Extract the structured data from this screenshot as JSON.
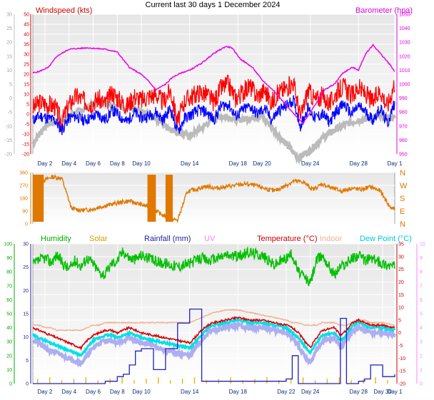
{
  "title": "Current last 30 days 1 December 2024",
  "colors": {
    "wind": "#ff0000",
    "gust": "#0000ff",
    "direction": "#e07800",
    "barometer": "#ee00ee",
    "baro_shadow": "#b4b4b4",
    "humidity": "#00c000",
    "solar": "#f0b000",
    "rainfall": "#2020c0",
    "uv": "#ff80ff",
    "temperature": "#dd0000",
    "indoor": "#f0b090",
    "dewpoint": "#00e0e8",
    "feels": "#a0a0f0",
    "axis_left": "#4040a0",
    "plot_bg": "#f2f2f2"
  },
  "chart_data": [
    {
      "type": "line",
      "name": "wind-panel",
      "left_label": "Windspeed (kts)",
      "right_label": "Barometer (hpa)",
      "left_axis": {
        "min": -20,
        "max": 50,
        "ticks": [
          -20,
          -15,
          -10,
          -5,
          0,
          5,
          10,
          15,
          20,
          25,
          30,
          35,
          40,
          45,
          50
        ]
      },
      "left_axis_outer": {
        "min": -20,
        "max": 30,
        "ticks": [
          -20,
          -15,
          -10,
          -5,
          0,
          5,
          10,
          15,
          20,
          25,
          30
        ]
      },
      "right_axis": {
        "min": 950,
        "max": 1050,
        "ticks": [
          950,
          960,
          970,
          980,
          990,
          1000,
          1010,
          1020,
          1030,
          1040,
          1050
        ]
      },
      "x_ticks": [
        "Day 2",
        "Day 4",
        "Day 6",
        "Day 8",
        "Day 10",
        "Day 14",
        "Day 18",
        "Day 20",
        "Day 24",
        "Day 28",
        "Day 1"
      ],
      "x_tick_days": [
        2,
        4,
        6,
        8,
        10,
        14,
        18,
        20,
        24,
        28,
        31
      ],
      "barometer_days": [
        1.0,
        1.5,
        2.3,
        3.0,
        4.0,
        5.5,
        7.0,
        8.0,
        9.0,
        10.0,
        10.6,
        11.2,
        12.0,
        12.6,
        13.3,
        14.0,
        15.0,
        16.0,
        17.0,
        17.5,
        18.2,
        19.2,
        20.0,
        21.0,
        22.0,
        22.7,
        23.4,
        24.0,
        24.6,
        25.2,
        26.0,
        26.7,
        27.5,
        28.0,
        28.6,
        29.2,
        30.0,
        30.6,
        31.0
      ],
      "barometer_values": [
        1008,
        1009,
        1012,
        1020,
        1025,
        1026,
        1025,
        1023,
        1012,
        1007,
        1002,
        996,
        1000,
        1005,
        1008,
        1010,
        1015,
        1022,
        1027,
        1026,
        1018,
        1012,
        1003,
        995,
        985,
        978,
        972,
        980,
        988,
        996,
        1000,
        1008,
        1012,
        1010,
        1022,
        1028,
        1020,
        1014,
        1009
      ],
      "windspeed_days": [
        1.0,
        1.6,
        2.2,
        2.8,
        3.4,
        4.0,
        4.6,
        5.2,
        5.8,
        6.4,
        7.0,
        7.6,
        8.2,
        8.8,
        9.4,
        10.0,
        10.6,
        11.2,
        11.8,
        12.4,
        13.0,
        13.6,
        14.2,
        14.8,
        15.4,
        16.0,
        16.6,
        17.2,
        17.8,
        18.4,
        19.0,
        19.6,
        20.2,
        20.8,
        21.4,
        22.0,
        22.6,
        23.2,
        23.8,
        24.4,
        25.0,
        25.6,
        26.2,
        26.8,
        27.4,
        28.0,
        28.6,
        29.2,
        29.8,
        30.4,
        31.0
      ],
      "windspeed_values": [
        3,
        6,
        5,
        4,
        -4,
        5,
        9,
        7,
        5,
        8,
        5,
        11,
        7,
        4,
        9,
        7,
        9,
        10,
        6,
        12,
        -4,
        7,
        9,
        11,
        10,
        6,
        13,
        15,
        8,
        11,
        14,
        9,
        12,
        6,
        11,
        13,
        16,
        -2,
        12,
        7,
        9,
        5,
        11,
        14,
        9,
        13,
        10,
        6,
        12,
        4,
        16
      ],
      "gust_values": [
        -3,
        -1,
        -2,
        -3,
        -8,
        -2,
        -1,
        -3,
        -2,
        0,
        -3,
        2,
        -1,
        -4,
        1,
        -2,
        -1,
        1,
        -3,
        3,
        -9,
        -2,
        0,
        2,
        1,
        -3,
        4,
        5,
        -1,
        2,
        4,
        0,
        3,
        -3,
        2,
        4,
        7,
        -6,
        3,
        -2,
        0,
        -4,
        2,
        5,
        0,
        4,
        1,
        -3,
        3,
        -5,
        6
      ],
      "grey_days": [
        1.0,
        2.0,
        3.0,
        4.0,
        5.0,
        6.0,
        7.0,
        8.0,
        9.0,
        10.0,
        11.0,
        12.0,
        13.0,
        14.0,
        15.0,
        16.0,
        17.0,
        18.0,
        19.0,
        20.0,
        21.0,
        22.0,
        23.0,
        24.0,
        25.0,
        26.0,
        27.0,
        28.0,
        29.0,
        30.0,
        31.0
      ],
      "grey_values": [
        -15,
        -6,
        -3,
        -1,
        2,
        5,
        6,
        4,
        3,
        1,
        -1,
        -6,
        -9,
        -11,
        -7,
        -2,
        -1,
        -3,
        -2,
        -1,
        -8,
        -15,
        -22,
        -18,
        -12,
        -8,
        -5,
        -3,
        -2,
        -1,
        -2
      ]
    },
    {
      "type": "line",
      "name": "direction-panel",
      "left_axis": {
        "min": 0,
        "max": 360,
        "ticks": [
          0,
          90,
          180,
          270,
          360
        ]
      },
      "right_labels": [
        "N",
        "W",
        "S",
        "E",
        "N"
      ],
      "direction_days": [
        1.0,
        1.8,
        2.6,
        3.4,
        4.2,
        5.0,
        5.8,
        6.6,
        7.4,
        8.2,
        9.0,
        9.8,
        10.6,
        11.4,
        12.2,
        13.0,
        13.8,
        14.6,
        15.4,
        16.2,
        17.0,
        17.8,
        18.6,
        19.4,
        20.2,
        21.0,
        21.8,
        22.6,
        23.4,
        24.2,
        25.0,
        25.8,
        26.6,
        27.4,
        28.2,
        29.0,
        29.8,
        30.6,
        31.0
      ],
      "direction_values": [
        250,
        300,
        330,
        320,
        110,
        95,
        100,
        120,
        135,
        150,
        160,
        140,
        120,
        80,
        40,
        25,
        225,
        245,
        265,
        250,
        260,
        270,
        280,
        270,
        250,
        230,
        260,
        300,
        295,
        240,
        280,
        250,
        230,
        250,
        240,
        260,
        230,
        120,
        100
      ]
    },
    {
      "type": "line",
      "name": "temperature-panel",
      "series_labels": [
        "Humidity",
        "Solar",
        "Rainfall (mm)",
        "UV",
        "Temperature (°C)",
        "Indoor",
        "Dew Point (°C)"
      ],
      "humidity_axis": {
        "min": 0,
        "max": 100,
        "ticks": [
          0,
          10,
          20,
          30,
          40,
          50,
          60,
          70,
          80,
          90,
          100
        ]
      },
      "rain_axis": {
        "min": 0,
        "max": 30,
        "ticks": [
          0,
          5,
          10,
          15,
          20,
          25,
          30
        ]
      },
      "temp_axis": {
        "min": -20,
        "max": 35,
        "ticks": [
          -20,
          -15,
          -10,
          -5,
          0,
          5,
          10,
          15,
          20,
          25,
          30,
          35
        ]
      },
      "uv_axis": {
        "min": 0,
        "max": 10,
        "ticks": [
          0,
          1,
          2,
          3,
          4,
          5,
          6,
          7,
          8,
          9,
          10
        ]
      },
      "x_ticks": [
        "Day 2",
        "Day 4",
        "Day 6",
        "Day 8",
        "Day 10",
        "Day 14",
        "Day 18",
        "Day 22",
        "Day 24",
        "Day 28",
        "Day 30",
        "Day 1"
      ],
      "x_tick_days": [
        2,
        4,
        6,
        8,
        10,
        14,
        18,
        22,
        24,
        28,
        30,
        31
      ],
      "days": [
        1.0,
        1.5,
        2.0,
        2.5,
        3.0,
        3.5,
        4.0,
        4.5,
        5.0,
        5.5,
        6.0,
        6.5,
        7.0,
        7.5,
        8.0,
        8.5,
        9.0,
        9.5,
        10.0,
        11.0,
        12.0,
        13.0,
        14.0,
        15.0,
        15.5,
        16.0,
        17.0,
        18.0,
        19.0,
        20.0,
        21.0,
        22.0,
        22.5,
        23.0,
        23.5,
        24.0,
        24.5,
        25.0,
        26.0,
        26.5,
        27.0,
        27.5,
        28.0,
        28.5,
        29.0,
        30.0,
        31.0
      ],
      "temperature": [
        2,
        1,
        0,
        -1,
        -2,
        -3,
        -4,
        -5,
        -6,
        -3,
        -1,
        0,
        1,
        1,
        0,
        1,
        2,
        1,
        0,
        -1,
        -2,
        -3,
        -4,
        1,
        3,
        4,
        5,
        6,
        5,
        5,
        4,
        3,
        2,
        0,
        -3,
        -6,
        -2,
        1,
        2,
        -1,
        1,
        4,
        5,
        4,
        3,
        3,
        2
      ],
      "indoor": [
        3,
        3,
        2,
        2,
        1,
        1,
        1,
        1,
        1,
        2,
        3,
        3,
        4,
        4,
        4,
        4,
        4,
        4,
        4,
        4,
        4,
        4,
        4,
        6,
        7,
        8,
        9,
        9,
        8,
        7,
        6,
        5,
        4,
        4,
        3,
        3,
        3,
        4,
        4,
        3,
        3,
        4,
        5,
        5,
        4,
        4,
        3
      ],
      "dewpoint": [
        -1,
        -2,
        -3,
        -4,
        -5,
        -6,
        -7,
        -8,
        -9,
        -6,
        -3,
        -2,
        -1,
        -1,
        -2,
        -1,
        0,
        -1,
        -2,
        -3,
        -4,
        -5,
        -6,
        -1,
        2,
        3,
        4,
        5,
        4,
        4,
        3,
        2,
        0,
        -2,
        -5,
        -8,
        -4,
        -1,
        0,
        -3,
        -1,
        3,
        4,
        3,
        2,
        2,
        1
      ],
      "feels": [
        -3,
        -4,
        -6,
        -7,
        -8,
        -9,
        -10,
        -11,
        -12,
        -9,
        -6,
        -4,
        -3,
        -3,
        -4,
        -3,
        -2,
        -3,
        -4,
        -5,
        -7,
        -8,
        -9,
        -3,
        0,
        1,
        2,
        3,
        2,
        2,
        1,
        0,
        -2,
        -5,
        -9,
        -12,
        -7,
        -3,
        -2,
        -6,
        -3,
        1,
        2,
        1,
        0,
        0,
        -1
      ],
      "humidity": [
        85,
        88,
        90,
        87,
        92,
        86,
        82,
        88,
        84,
        90,
        86,
        80,
        78,
        86,
        88,
        95,
        90,
        89,
        92,
        88,
        86,
        84,
        86,
        90,
        88,
        89,
        92,
        91,
        94,
        92,
        85,
        90,
        93,
        80,
        76,
        72,
        88,
        92,
        78,
        84,
        86,
        90,
        92,
        88,
        90,
        86,
        84
      ],
      "rainfall": [
        0,
        0,
        0,
        0,
        0,
        0,
        0,
        0,
        0,
        0,
        0,
        0,
        0.5,
        0.5,
        1.5,
        2,
        4,
        7,
        7.5,
        3,
        7.5,
        13,
        16,
        0.5,
        0.5,
        0.5,
        0.5,
        0.5,
        0.5,
        0.5,
        0.5,
        1,
        6,
        0,
        0,
        0,
        0,
        0,
        0,
        14,
        0,
        0,
        0.5,
        1,
        4,
        1.5,
        2
      ]
    }
  ]
}
